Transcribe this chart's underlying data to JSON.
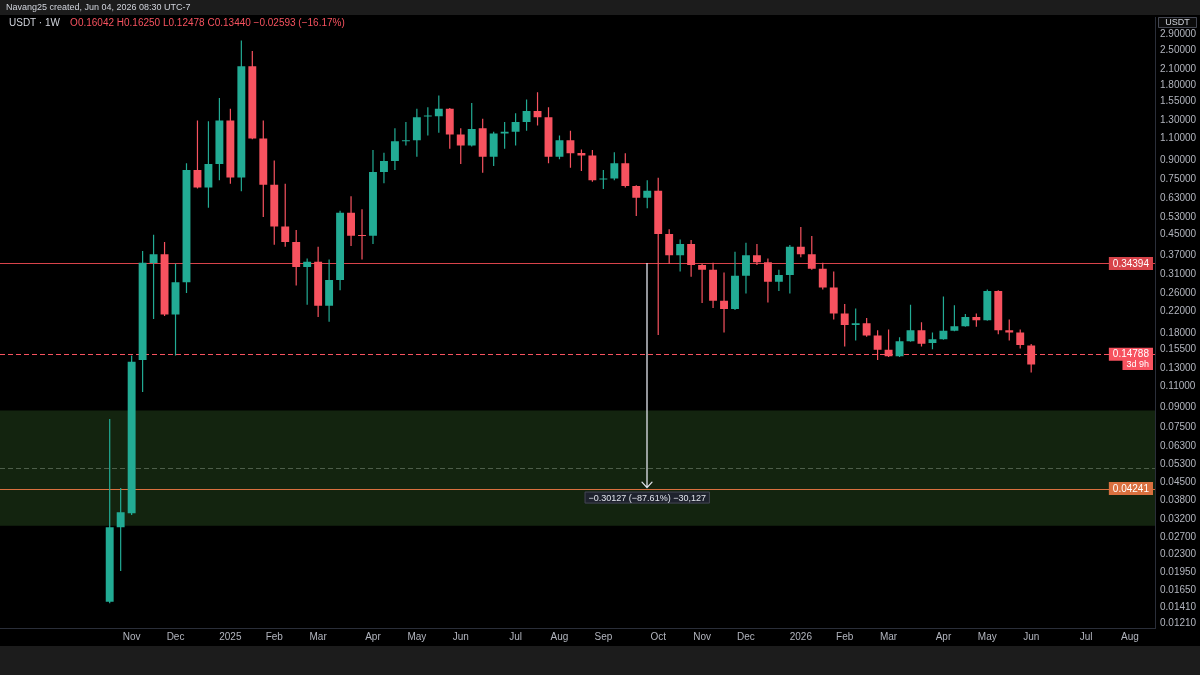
{
  "chart_data": {
    "type": "candlestick",
    "title": "USDT · 1W",
    "subtitle": "O0.16042 H0.16250 L0.12478 C0.13440 −0.02593 (−16.17%)",
    "ylabel": "USDT",
    "log": true,
    "x": [
      "2024-10-21",
      "2024-10-28",
      "2024-11-04",
      "2024-11-11",
      "2024-11-18",
      "2024-11-25",
      "2024-12-02",
      "2024-12-09",
      "2024-12-16",
      "2024-12-23",
      "2024-12-30",
      "2025-01-06",
      "2025-01-13",
      "2025-01-20",
      "2025-01-27",
      "2025-02-03",
      "2025-02-10",
      "2025-02-17",
      "2025-02-24",
      "2025-03-03",
      "2025-03-10",
      "2025-03-17",
      "2025-03-24",
      "2025-03-31",
      "2025-04-07",
      "2025-04-14",
      "2025-04-21",
      "2025-04-28",
      "2025-05-05",
      "2025-05-12",
      "2025-05-19",
      "2025-05-26",
      "2025-06-02",
      "2025-06-09",
      "2025-06-16",
      "2025-06-23",
      "2025-06-30",
      "2025-07-07",
      "2025-07-14",
      "2025-07-21",
      "2025-07-28",
      "2025-08-04",
      "2025-08-11",
      "2025-08-18",
      "2025-08-25",
      "2025-09-01",
      "2025-09-08",
      "2025-09-15",
      "2025-09-22",
      "2025-09-29",
      "2025-10-06",
      "2025-10-13",
      "2025-10-20",
      "2025-10-27",
      "2025-11-03",
      "2025-11-10",
      "2025-11-17",
      "2025-11-24",
      "2025-12-01",
      "2025-12-08",
      "2025-12-15",
      "2025-12-22",
      "2025-12-29",
      "2026-01-05",
      "2026-01-12",
      "2026-01-19",
      "2026-01-26",
      "2026-02-02",
      "2026-02-09",
      "2026-02-16",
      "2026-02-23",
      "2026-03-02",
      "2026-03-09",
      "2026-03-16",
      "2026-03-23",
      "2026-03-30",
      "2026-04-06",
      "2026-04-13",
      "2026-04-20",
      "2026-04-27",
      "2026-05-04",
      "2026-05-11",
      "2026-05-18",
      "2026-05-25",
      "2026-06-01"
    ],
    "ohlc": [
      [
        0.0148,
        0.081,
        0.0146,
        0.0296
      ],
      [
        0.0296,
        0.0426,
        0.0197,
        0.034
      ],
      [
        0.0337,
        0.146,
        0.0332,
        0.138
      ],
      [
        0.14,
        0.386,
        0.104,
        0.346
      ],
      [
        0.345,
        0.449,
        0.205,
        0.375
      ],
      [
        0.375,
        0.42,
        0.211,
        0.214
      ],
      [
        0.214,
        0.344,
        0.146,
        0.289
      ],
      [
        0.289,
        0.872,
        0.261,
        0.819
      ],
      [
        0.819,
        1.3,
        0.691,
        0.697
      ],
      [
        0.697,
        1.29,
        0.577,
        0.866
      ],
      [
        0.866,
        1.6,
        0.746,
        1.3
      ],
      [
        1.3,
        1.45,
        0.721,
        0.765
      ],
      [
        0.765,
        2.73,
        0.673,
        2.15
      ],
      [
        2.15,
        2.48,
        1.09,
        1.1
      ],
      [
        1.1,
        1.3,
        0.529,
        0.714
      ],
      [
        0.714,
        0.896,
        0.409,
        0.485
      ],
      [
        0.485,
        0.721,
        0.402,
        0.42
      ],
      [
        0.42,
        0.469,
        0.28,
        0.333
      ],
      [
        0.333,
        0.36,
        0.234,
        0.349
      ],
      [
        0.349,
        0.402,
        0.209,
        0.232
      ],
      [
        0.232,
        0.357,
        0.2,
        0.295
      ],
      [
        0.295,
        0.561,
        0.268,
        0.551
      ],
      [
        0.551,
        0.643,
        0.404,
        0.445
      ],
      [
        0.448,
        0.569,
        0.357,
        0.444
      ],
      [
        0.445,
        0.987,
        0.412,
        0.804
      ],
      [
        0.804,
        0.962,
        0.724,
        0.891
      ],
      [
        0.891,
        1.21,
        0.819,
        1.07
      ],
      [
        1.07,
        1.28,
        1.03,
        1.08
      ],
      [
        1.08,
        1.45,
        0.927,
        1.34
      ],
      [
        1.35,
        1.47,
        1.13,
        1.36
      ],
      [
        1.35,
        1.64,
        1.16,
        1.45
      ],
      [
        1.45,
        1.46,
        1.0,
        1.14
      ],
      [
        1.14,
        1.21,
        0.866,
        1.03
      ],
      [
        1.03,
        1.53,
        1.02,
        1.2
      ],
      [
        1.21,
        1.32,
        0.799,
        0.927
      ],
      [
        0.927,
        1.17,
        0.851,
        1.15
      ],
      [
        1.15,
        1.28,
        1.0,
        1.17
      ],
      [
        1.17,
        1.39,
        1.03,
        1.28
      ],
      [
        1.28,
        1.58,
        1.18,
        1.42
      ],
      [
        1.42,
        1.69,
        1.24,
        1.34
      ],
      [
        1.34,
        1.47,
        0.872,
        0.927
      ],
      [
        0.927,
        1.13,
        0.905,
        1.08
      ],
      [
        1.08,
        1.18,
        0.837,
        0.957
      ],
      [
        0.96,
        0.991,
        0.812,
        0.939
      ],
      [
        0.939,
        0.987,
        0.735,
        0.746
      ],
      [
        0.751,
        0.819,
        0.687,
        0.758
      ],
      [
        0.758,
        0.966,
        0.746,
        0.872
      ],
      [
        0.872,
        0.957,
        0.696,
        0.706
      ],
      [
        0.706,
        0.711,
        0.534,
        0.634
      ],
      [
        0.634,
        0.746,
        0.574,
        0.676
      ],
      [
        0.676,
        0.763,
        0.177,
        0.452
      ],
      [
        0.452,
        0.473,
        0.342,
        0.371
      ],
      [
        0.371,
        0.43,
        0.319,
        0.412
      ],
      [
        0.412,
        0.428,
        0.304,
        0.339
      ],
      [
        0.339,
        0.342,
        0.238,
        0.324
      ],
      [
        0.324,
        0.346,
        0.227,
        0.243
      ],
      [
        0.243,
        0.316,
        0.181,
        0.225
      ],
      [
        0.225,
        0.383,
        0.223,
        0.307
      ],
      [
        0.307,
        0.417,
        0.26,
        0.371
      ],
      [
        0.371,
        0.412,
        0.339,
        0.348
      ],
      [
        0.348,
        0.36,
        0.239,
        0.29
      ],
      [
        0.29,
        0.324,
        0.266,
        0.309
      ],
      [
        0.309,
        0.408,
        0.26,
        0.402
      ],
      [
        0.402,
        0.483,
        0.364,
        0.375
      ],
      [
        0.375,
        0.444,
        0.324,
        0.327
      ],
      [
        0.327,
        0.346,
        0.27,
        0.275
      ],
      [
        0.275,
        0.319,
        0.204,
        0.216
      ],
      [
        0.216,
        0.236,
        0.159,
        0.194
      ],
      [
        0.194,
        0.226,
        0.168,
        0.197
      ],
      [
        0.197,
        0.207,
        0.174,
        0.176
      ],
      [
        0.176,
        0.185,
        0.14,
        0.154
      ],
      [
        0.154,
        0.186,
        0.144,
        0.145
      ],
      [
        0.145,
        0.173,
        0.144,
        0.167
      ],
      [
        0.167,
        0.234,
        0.166,
        0.185
      ],
      [
        0.185,
        0.199,
        0.159,
        0.163
      ],
      [
        0.164,
        0.181,
        0.155,
        0.17
      ],
      [
        0.17,
        0.253,
        0.169,
        0.184
      ],
      [
        0.184,
        0.233,
        0.183,
        0.192
      ],
      [
        0.192,
        0.215,
        0.191,
        0.209
      ],
      [
        0.209,
        0.216,
        0.191,
        0.203
      ],
      [
        0.203,
        0.27,
        0.202,
        0.266
      ],
      [
        0.266,
        0.268,
        0.178,
        0.185
      ],
      [
        0.185,
        0.204,
        0.168,
        0.181
      ],
      [
        0.181,
        0.186,
        0.156,
        0.161
      ],
      [
        0.16042,
        0.1625,
        0.12478,
        0.1344
      ]
    ],
    "colors": [
      "#22ab94",
      "#22ab94",
      "#22ab94",
      "#22ab94",
      "#22ab94",
      "#f7525f",
      "#22ab94",
      "#22ab94",
      "#f7525f",
      "#22ab94",
      "#22ab94",
      "#f7525f",
      "#22ab94",
      "#f7525f",
      "#f7525f",
      "#f7525f",
      "#f7525f",
      "#f7525f",
      "#22ab94",
      "#f7525f",
      "#22ab94",
      "#22ab94",
      "#f7525f",
      "#f7525f",
      "#22ab94",
      "#22ab94",
      "#22ab94",
      "#22ab94",
      "#22ab94",
      "#22ab94",
      "#22ab94",
      "#f7525f",
      "#f7525f",
      "#22ab94",
      "#f7525f",
      "#22ab94",
      "#22ab94",
      "#22ab94",
      "#22ab94",
      "#f7525f",
      "#f7525f",
      "#22ab94",
      "#f7525f",
      "#f7525f",
      "#f7525f",
      "#22ab94",
      "#22ab94",
      "#f7525f",
      "#f7525f",
      "#22ab94",
      "#f7525f",
      "#f7525f",
      "#22ab94",
      "#f7525f",
      "#f7525f",
      "#f7525f",
      "#f7525f",
      "#22ab94",
      "#22ab94",
      "#f7525f",
      "#f7525f",
      "#22ab94",
      "#22ab94",
      "#f7525f",
      "#f7525f",
      "#f7525f",
      "#f7525f",
      "#f7525f",
      "#22ab94",
      "#f7525f",
      "#f7525f",
      "#f7525f",
      "#22ab94",
      "#22ab94",
      "#f7525f",
      "#22ab94",
      "#22ab94",
      "#22ab94",
      "#22ab94",
      "#f7525f",
      "#22ab94",
      "#f7525f",
      "#f7525f",
      "#f7525f",
      "#f7525f"
    ],
    "xlim": [
      "2024-08-12",
      "2026-08-19"
    ],
    "xticks": [
      {
        "value": "2024-11-04",
        "label": "Nov"
      },
      {
        "value": "2024-12-02",
        "label": "Dec"
      },
      {
        "value": "2025-01-06",
        "label": "2025"
      },
      {
        "value": "2025-02-03",
        "label": "Feb"
      },
      {
        "value": "2025-03-03",
        "label": "Mar"
      },
      {
        "value": "2025-04-07",
        "label": "Apr"
      },
      {
        "value": "2025-05-05",
        "label": "May"
      },
      {
        "value": "2025-06-02",
        "label": "Jun"
      },
      {
        "value": "2025-07-07",
        "label": "Jul"
      },
      {
        "value": "2025-08-04",
        "label": "Aug"
      },
      {
        "value": "2025-09-01",
        "label": "Sep"
      },
      {
        "value": "2025-10-06",
        "label": "Oct"
      },
      {
        "value": "2025-11-03",
        "label": "Nov"
      },
      {
        "value": "2025-12-01",
        "label": "Dec"
      },
      {
        "value": "2026-01-05",
        "label": "2026"
      },
      {
        "value": "2026-02-02",
        "label": "Feb"
      },
      {
        "value": "2026-03-02",
        "label": "Mar"
      },
      {
        "value": "2026-04-06",
        "label": "Apr"
      },
      {
        "value": "2026-05-04",
        "label": "May"
      },
      {
        "value": "2026-06-01",
        "label": "Jun"
      },
      {
        "value": "2026-07-06",
        "label": "Jul"
      },
      {
        "value": "2026-08-03",
        "label": "Aug"
      }
    ],
    "ylim": [
      0.0116,
      3.4
    ],
    "yticks": [
      {
        "value": 2.9,
        "label": "2.90000"
      },
      {
        "value": 2.5,
        "label": "2.50000"
      },
      {
        "value": 2.1,
        "label": "2.10000"
      },
      {
        "value": 1.8,
        "label": "1.80000"
      },
      {
        "value": 1.55,
        "label": "1.55000"
      },
      {
        "value": 1.3,
        "label": "1.30000"
      },
      {
        "value": 1.1,
        "label": "1.10000"
      },
      {
        "value": 0.9,
        "label": "0.90000"
      },
      {
        "value": 0.75,
        "label": "0.75000"
      },
      {
        "value": 0.63,
        "label": "0.63000"
      },
      {
        "value": 0.53,
        "label": "0.53000"
      },
      {
        "value": 0.45,
        "label": "0.45000"
      },
      {
        "value": 0.37,
        "label": "0.37000"
      },
      {
        "value": 0.31,
        "label": "0.31000"
      },
      {
        "value": 0.26,
        "label": "0.26000"
      },
      {
        "value": 0.22,
        "label": "0.22000"
      },
      {
        "value": 0.18,
        "label": "0.18000"
      },
      {
        "value": 0.155,
        "label": "0.15500"
      },
      {
        "value": 0.13,
        "label": "0.13000"
      },
      {
        "value": 0.11,
        "label": "0.11000"
      },
      {
        "value": 0.09,
        "label": "0.09000"
      },
      {
        "value": 0.075,
        "label": "0.07500"
      },
      {
        "value": 0.063,
        "label": "0.06300"
      },
      {
        "value": 0.053,
        "label": "0.05300"
      },
      {
        "value": 0.045,
        "label": "0.04500"
      },
      {
        "value": 0.038,
        "label": "0.03800"
      },
      {
        "value": 0.032,
        "label": "0.03200"
      },
      {
        "value": 0.027,
        "label": "0.02700"
      },
      {
        "value": 0.023,
        "label": "0.02300"
      },
      {
        "value": 0.0195,
        "label": "0.01950"
      },
      {
        "value": 0.0165,
        "label": "0.01650"
      },
      {
        "value": 0.0141,
        "label": "0.01410"
      },
      {
        "value": 0.0121,
        "label": "0.01210"
      }
    ],
    "bands": [
      {
        "axis": "y",
        "from": 0.03,
        "to": 0.0877,
        "color": "#13240f"
      }
    ],
    "ref_lines": [
      {
        "axis": "y",
        "value": 0.34394,
        "label": "0.34394",
        "color": "#d8434a",
        "line_style": "solid"
      },
      {
        "axis": "y",
        "value": 0.14788,
        "label": "0.14788",
        "color": "#f7525f",
        "line_style": "dashed"
      },
      {
        "axis": "y",
        "value": 0.04241,
        "label": "0.04241",
        "color": "#d9703f",
        "line_style": "solid"
      },
      {
        "axis": "y",
        "value": 0.0514,
        "color": "#4d5e4a",
        "line_style": "dashed"
      }
    ],
    "annotations": [
      "Navang25 created, Jun 04, 2026 08:30 UTC-7",
      {
        "text": "3d 9h",
        "y": 0.135
      },
      {
        "text": "−0.30127 (−87.61%) −30,127",
        "x": "2025-09-29",
        "y": 0.04241
      }
    ]
  }
}
